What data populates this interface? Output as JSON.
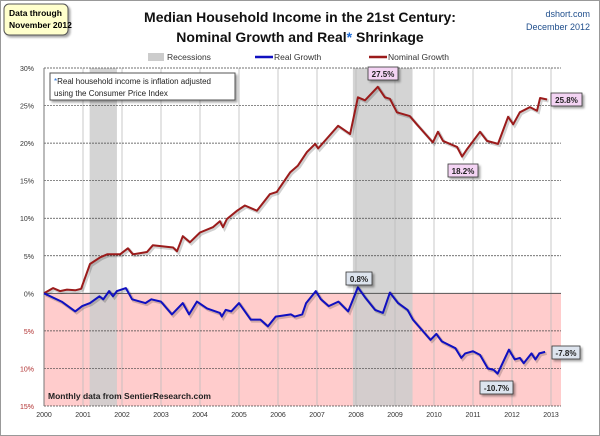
{
  "header": {
    "data_note_line1": "Data through",
    "data_note_line2": "November 2012",
    "source_line1": "dshort.com",
    "source_line2": "December 2012"
  },
  "chart_data": {
    "type": "line",
    "title_line1": "Median Household Income in the 21st Century:",
    "title_line2_a": "Nominal  Growth and Real",
    "title_line2_star": "*",
    "title_line2_b": " Shrinkage",
    "legend": {
      "recessions": "Recessions",
      "real": "Real Growth",
      "nominal": "Nominal Growth"
    },
    "legend_placement": "top",
    "footnote_star": "*",
    "footnote_line1": "Real household  income is inflation adjusted",
    "footnote_line2": "using  the Consumer Price Index",
    "source_note": "Monthly data from SentierResearch.com",
    "xlim": [
      2000,
      2013
    ],
    "ylim": [
      -15,
      30
    ],
    "x_ticks": [
      "2000",
      "2001",
      "2002",
      "2003",
      "2004",
      "2005",
      "2006",
      "2007",
      "2008",
      "2009",
      "2010",
      "2011",
      "2012",
      "2013"
    ],
    "y_ticks": [
      {
        "value": 30,
        "label": "30%"
      },
      {
        "value": 25,
        "label": "25%"
      },
      {
        "value": 20,
        "label": "20%"
      },
      {
        "value": 15,
        "label": "15%"
      },
      {
        "value": 10,
        "label": "10%"
      },
      {
        "value": 5,
        "label": "5%"
      },
      {
        "value": 0,
        "label": "0%"
      },
      {
        "value": -5,
        "label": "5%"
      },
      {
        "value": -10,
        "label": "10%"
      },
      {
        "value": -15,
        "label": "15%"
      }
    ],
    "grid": true,
    "negative_region_shaded": true,
    "recessions": [
      [
        2001.17,
        2001.87
      ],
      [
        2007.92,
        2009.45
      ]
    ],
    "colors": {
      "real": "#1010c0",
      "nominal": "#9b1b1b",
      "recession": "#cccccc",
      "negative_fill": "#ffcccc",
      "pink_label": "#f4d4f4",
      "blue_label": "#dde4ee"
    },
    "series": [
      {
        "name": "Nominal Growth",
        "x": [
          2000,
          2000.23,
          2000.41,
          2000.59,
          2000.8,
          2000.95,
          2001.18,
          2001.44,
          2001.62,
          2001.95,
          2002.15,
          2002.28,
          2002.64,
          2002.79,
          2003.31,
          2003.41,
          2003.56,
          2003.74,
          2004.0,
          2004.33,
          2004.51,
          2004.59,
          2004.69,
          2004.95,
          2005.15,
          2005.46,
          2005.79,
          2005.97,
          2006.31,
          2006.51,
          2006.74,
          2006.95,
          2007.03,
          2007.54,
          2007.85,
          2008.05,
          2008.23,
          2008.56,
          2008.74,
          2008.87,
          2009.05,
          2009.38,
          2009.56,
          2009.97,
          2010.1,
          2010.23,
          2010.59,
          2010.72,
          2010.85,
          2011.18,
          2011.36,
          2011.64,
          2011.9,
          2012.03,
          2012.2,
          2012.46,
          2012.64,
          2012.72,
          2012.9
        ],
        "y": [
          0,
          0.7,
          0.3,
          0.5,
          0.4,
          0.6,
          3.9,
          4.8,
          5.2,
          5.2,
          6.0,
          5.2,
          5.5,
          6.4,
          6.1,
          5.6,
          7.6,
          6.8,
          8.1,
          8.8,
          9.6,
          8.8,
          9.9,
          11.0,
          11.7,
          11.0,
          13.2,
          13.5,
          16.1,
          17.0,
          18.8,
          19.9,
          19.3,
          22.3,
          21.2,
          26.1,
          25.7,
          27.5,
          26.1,
          25.9,
          24.1,
          23.6,
          22.5,
          20.1,
          21.5,
          20.3,
          19.5,
          18.2,
          19.2,
          21.5,
          20.3,
          19.9,
          23.5,
          22.5,
          24.1,
          24.8,
          24.3,
          26.0,
          25.8
        ]
      },
      {
        "name": "Real Growth",
        "x": [
          2000,
          2000.45,
          2000.8,
          2000.98,
          2001.18,
          2001.42,
          2001.52,
          2001.67,
          2001.77,
          2001.87,
          2002.1,
          2002.26,
          2002.6,
          2002.75,
          2003.0,
          2003.28,
          2003.56,
          2003.72,
          2003.92,
          2004.18,
          2004.51,
          2004.56,
          2004.66,
          2004.8,
          2005.0,
          2005.3,
          2005.55,
          2005.74,
          2005.94,
          2006.33,
          2006.43,
          2006.62,
          2006.72,
          2006.97,
          2007.1,
          2007.3,
          2007.55,
          2007.8,
          2008.05,
          2008.24,
          2008.49,
          2008.69,
          2008.87,
          2009.08,
          2009.32,
          2009.46,
          2009.91,
          2010.06,
          2010.2,
          2010.55,
          2010.7,
          2010.8,
          2011.0,
          2011.18,
          2011.38,
          2011.53,
          2011.63,
          2011.92,
          2012.07,
          2012.2,
          2012.3,
          2012.5,
          2012.6,
          2012.7,
          2012.85
        ],
        "y": [
          0,
          -1.1,
          -2.4,
          -1.7,
          -1.3,
          -0.4,
          -0.8,
          0.3,
          -0.4,
          0.3,
          0.7,
          -0.8,
          -1.3,
          -0.8,
          -1.1,
          -2.8,
          -1.3,
          -2.8,
          -1.1,
          -2.0,
          -2.6,
          -3.1,
          -2.2,
          -2.4,
          -1.3,
          -3.5,
          -3.5,
          -4.4,
          -3.1,
          -2.8,
          -3.1,
          -2.8,
          -1.3,
          0.3,
          -0.8,
          -1.7,
          -1.1,
          -2.4,
          0.8,
          -0.6,
          -2.2,
          -2.6,
          0.1,
          -1.3,
          -2.2,
          -3.5,
          -6.2,
          -5.4,
          -6.4,
          -7.3,
          -8.6,
          -8.0,
          -7.7,
          -8.2,
          -10.0,
          -10.2,
          -10.7,
          -7.5,
          -8.8,
          -8.6,
          -9.3,
          -8.0,
          -8.8,
          -8.0,
          -7.8
        ]
      }
    ],
    "annotations": [
      {
        "text": "27.5%",
        "series": "nominal",
        "style": "pink"
      },
      {
        "text": "25.8%",
        "series": "nominal",
        "style": "pink"
      },
      {
        "text": "18.2%",
        "series": "nominal",
        "style": "pink"
      },
      {
        "text": "0.8%",
        "series": "real",
        "style": "blue"
      },
      {
        "text": "-7.8%",
        "series": "real",
        "style": "blue"
      },
      {
        "text": "-10.7%",
        "series": "real",
        "style": "blue"
      }
    ]
  }
}
